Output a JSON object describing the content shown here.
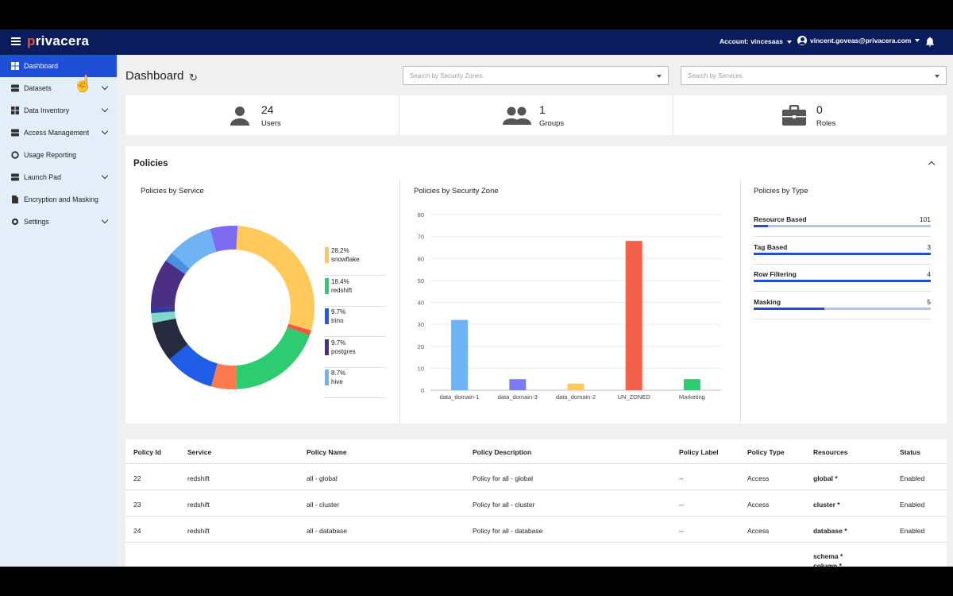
{
  "topbar": {
    "logo": "rivacera",
    "logo_p": "p",
    "account": "Account: vincesaas",
    "user_email": "vincent.goveas@privacera.com"
  },
  "sidebar": {
    "items": [
      {
        "label": "Dashboard",
        "icon": "dashboard-icon",
        "active": true,
        "expandable": false
      },
      {
        "label": "Datasets",
        "icon": "datasets-icon",
        "active": false,
        "expandable": true
      },
      {
        "label": "Data Inventory",
        "icon": "data-inventory-icon",
        "active": false,
        "expandable": true
      },
      {
        "label": "Access Management",
        "icon": "access-management-icon",
        "active": false,
        "expandable": true
      },
      {
        "label": "Usage Reporting",
        "icon": "usage-reporting-icon",
        "active": false,
        "expandable": false
      },
      {
        "label": "Launch Pad",
        "icon": "launch-pad-icon",
        "active": false,
        "expandable": true
      },
      {
        "label": "Encryption and Masking",
        "icon": "encryption-icon",
        "active": false,
        "expandable": false
      },
      {
        "label": "Settings",
        "icon": "gear-icon",
        "active": false,
        "expandable": true
      }
    ]
  },
  "header": {
    "title": "Dashboard",
    "zones_placeholder": "Search by Security Zones",
    "services_placeholder": "Search by Services"
  },
  "stats": [
    {
      "value": "24",
      "label": "Users",
      "icon": "user-icon"
    },
    {
      "value": "1",
      "label": "Groups",
      "icon": "groups-icon"
    },
    {
      "value": "0",
      "label": "Roles",
      "icon": "briefcase-icon"
    }
  ],
  "policies": {
    "title": "Policies",
    "by_service_title": "Policies by Service",
    "by_zone_title": "Policies by Security Zone",
    "by_type_title": "Policies by Type",
    "service_legend": [
      {
        "pct": "28.2%",
        "name": "snowflake",
        "color": "#ffc95c"
      },
      {
        "pct": "18.4%",
        "name": "redshift",
        "color": "#2ecc71"
      },
      {
        "pct": "9.7%",
        "name": "trino",
        "color": "#1f5ce8"
      },
      {
        "pct": "9.7%",
        "name": "postgres",
        "color": "#4a2f84"
      },
      {
        "pct": "8.7%",
        "name": "hive",
        "color": "#6fb3f5"
      }
    ],
    "types": [
      {
        "name": "Resource Based",
        "value": "101",
        "fraction": 0.08
      },
      {
        "name": "Tag Based",
        "value": "3",
        "fraction": 1.0
      },
      {
        "name": "Row Filtering",
        "value": "4",
        "fraction": 1.0
      },
      {
        "name": "Masking",
        "value": "5",
        "fraction": 0.4
      }
    ]
  },
  "chart_data": [
    {
      "type": "pie",
      "title": "Policies by Service",
      "slices": [
        {
          "name": "snowflake",
          "value": 28.2,
          "color": "#ffc95c"
        },
        {
          "name": "",
          "value": 1.0,
          "color": "#f4573f"
        },
        {
          "name": "redshift",
          "value": 18.4,
          "color": "#2ecc71"
        },
        {
          "name": "",
          "value": 5.0,
          "color": "#ff7b4f"
        },
        {
          "name": "trino",
          "value": 9.7,
          "color": "#1f5ce8"
        },
        {
          "name": "",
          "value": 7.8,
          "color": "#262a3e"
        },
        {
          "name": "",
          "value": 1.9,
          "color": "#7fd8c8"
        },
        {
          "name": "",
          "value": 1.0,
          "color": "#2d3c9a"
        },
        {
          "name": "postgres",
          "value": 9.7,
          "color": "#4a2f84"
        },
        {
          "name": "",
          "value": 1.9,
          "color": "#4a8fe0"
        },
        {
          "name": "hive",
          "value": 8.7,
          "color": "#6fb3f5"
        },
        {
          "name": "",
          "value": 5.4,
          "color": "#7b6cf2"
        }
      ]
    },
    {
      "type": "bar",
      "title": "Policies by Security Zone",
      "categories": [
        "data_domain-1",
        "data_domain-3",
        "data_domain-2",
        "UN_ZONED",
        "Marketing"
      ],
      "values": [
        32,
        5,
        3,
        68,
        5
      ],
      "colors": [
        "#6fb3f5",
        "#7b7cf5",
        "#ffc95c",
        "#f4614a",
        "#2ecc71"
      ],
      "ylim": [
        0,
        80
      ],
      "yticks": [
        0,
        10,
        20,
        30,
        40,
        50,
        60,
        70,
        80
      ],
      "grid": true
    }
  ],
  "table": {
    "headers": [
      "Policy Id",
      "Service",
      "Policy Name",
      "Policy Description",
      "Policy Label",
      "Policy Type",
      "Resources",
      "Status"
    ],
    "rows": [
      [
        "22",
        "redshift",
        "all - global",
        "Policy for all - global",
        "--",
        "Access",
        "global *",
        "Enabled"
      ],
      [
        "23",
        "redshift",
        "all - cluster",
        "Policy for all - cluster",
        "--",
        "Access",
        "cluster *",
        "Enabled"
      ],
      [
        "24",
        "redshift",
        "all - database",
        "Policy for all - database",
        "--",
        "Access",
        "database *",
        "Enabled"
      ]
    ],
    "partial_row": [
      "schema *",
      "column *"
    ]
  }
}
